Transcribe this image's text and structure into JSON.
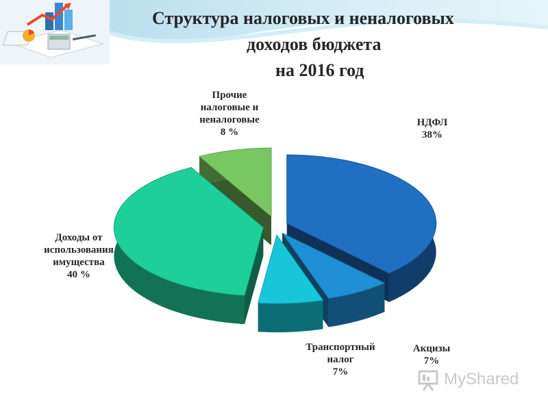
{
  "slide": {
    "title_line1": "Структура налоговых и неналоговых",
    "title_line2": "доходов бюджета",
    "title_line3": "на 2016 год"
  },
  "chart_data": {
    "type": "pie",
    "title": "Структура налоговых и неналоговых доходов бюджета на 2016 год",
    "slices": [
      {
        "name_lines": [
          "НДФЛ"
        ],
        "value": 38,
        "value_label": "38%",
        "color": "#1f6fc2"
      },
      {
        "name_lines": [
          "Акцизы"
        ],
        "value": 7,
        "value_label": "7%",
        "color": "#1f90d6"
      },
      {
        "name_lines": [
          "Транспортный",
          "налог"
        ],
        "value": 7,
        "value_label": "7%",
        "color": "#17c6d9"
      },
      {
        "name_lines": [
          "Доходы от",
          "использования",
          "имущества"
        ],
        "value": 40,
        "value_label": "40 %",
        "color": "#1fcf9a"
      },
      {
        "name_lines": [
          "Прочие",
          "налоговые и",
          "неналоговые"
        ],
        "value": 8,
        "value_label": "8 %",
        "color": "#78c862"
      }
    ],
    "exploded": true,
    "three_d": true,
    "legend": "none (labels next to slices)"
  },
  "watermark": {
    "text": "MyShared"
  }
}
